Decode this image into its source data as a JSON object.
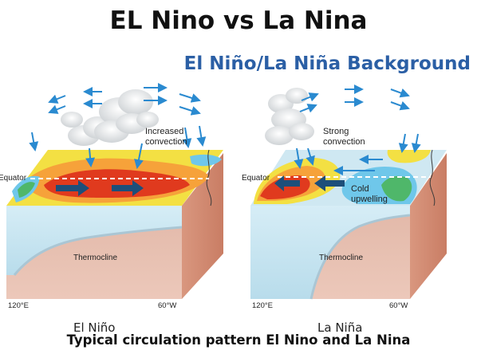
{
  "title": "EL Nino vs La Nina",
  "subtitle": "El Niño/La Niña Background",
  "left_panel": {
    "convection_label_1": "Increased",
    "convection_label_2": "convection",
    "equator_label": "Equator",
    "thermocline_label": "Thermocline",
    "lon_west": "120°E",
    "lon_east": "60°W",
    "caption": "El Niño"
  },
  "right_panel": {
    "convection_label_1": "Strong",
    "convection_label_2": "convection",
    "equator_label": "Equator",
    "upwelling_label_1": "Cold",
    "upwelling_label_2": "upwelling",
    "thermocline_label": "Thermocline",
    "lon_west": "120°E",
    "lon_east": "60°W",
    "caption": "La Niña"
  },
  "bottom_caption": "Typical circulation pattern  El Nino and La Nina",
  "colors": {
    "title": "#111111",
    "subtitle": "#2b5fa5",
    "arrow": "#2a8ad0",
    "ocean_side": "#e8c2b4",
    "land_side": "#d48f78",
    "warm": "#e03a1e",
    "cool": "#6fc7ea"
  }
}
